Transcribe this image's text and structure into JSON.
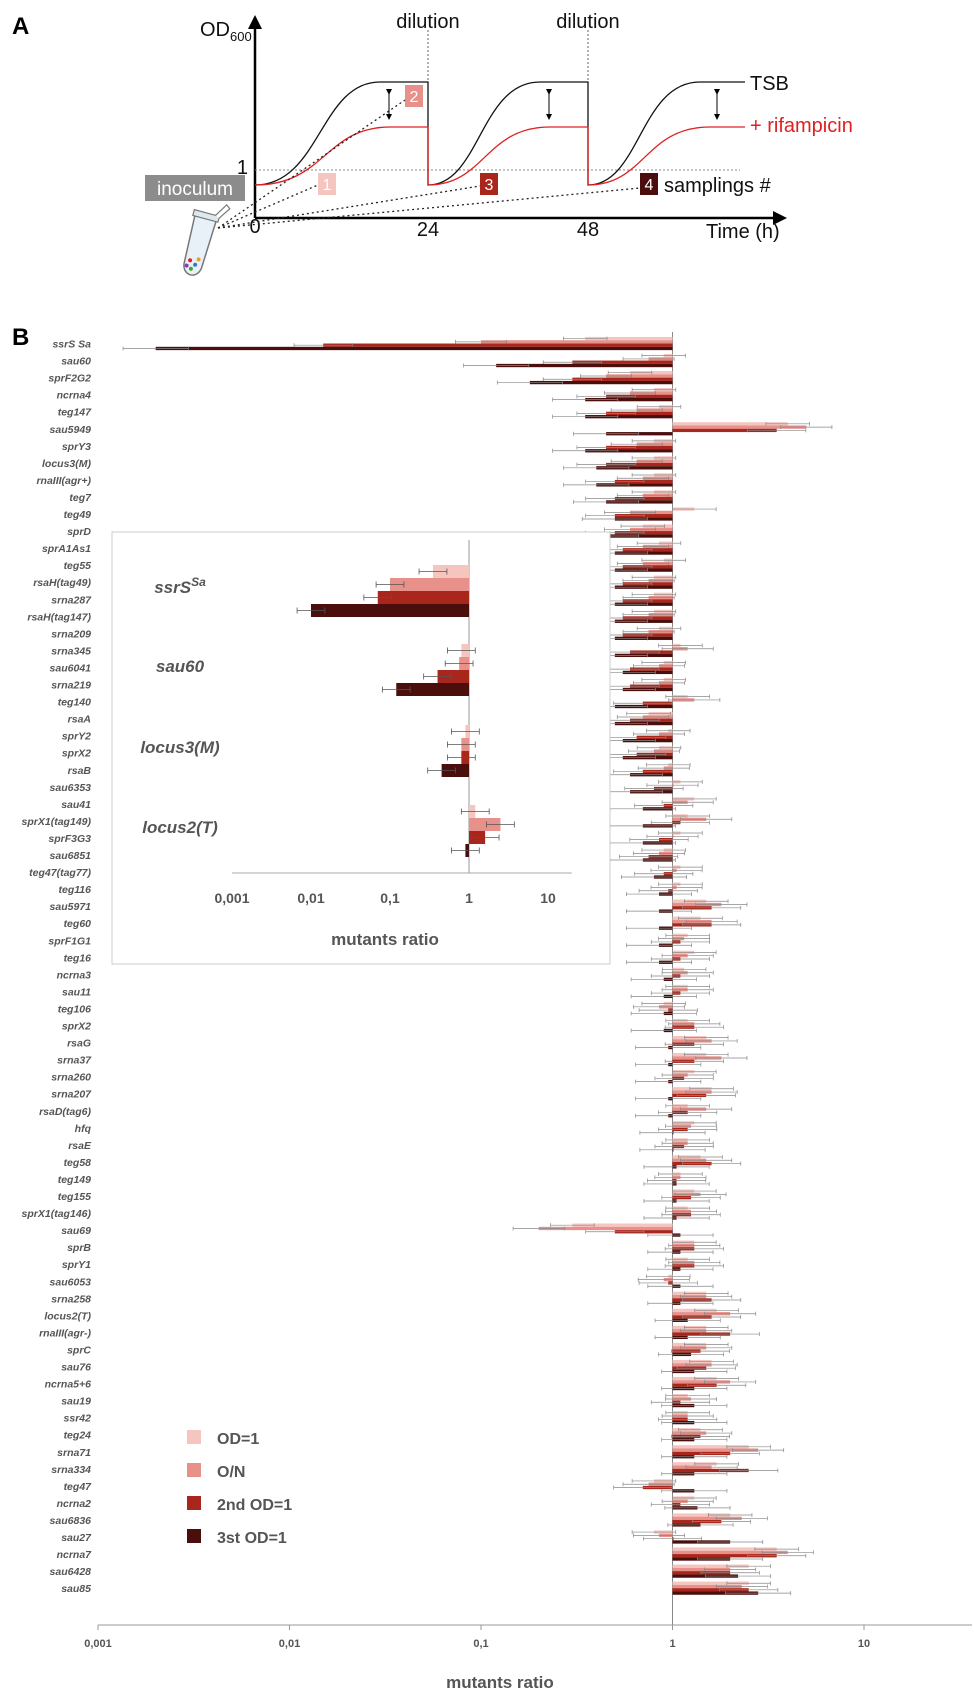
{
  "panel_a": {
    "label": "A",
    "y_axis_label": "OD",
    "y_axis_sub": "600",
    "x_axis_label": "Time (h)",
    "tick_0": "0",
    "tick_24": "24",
    "tick_48": "48",
    "tick_1": "1",
    "dilution_1": "dilution",
    "dilution_2": "dilution",
    "tsb_label": "TSB",
    "rif_label": "+ rifampicin",
    "inoculum_label": "inoculum",
    "samplings_label": "samplings #",
    "sampling_numbers": [
      "1",
      "2",
      "3",
      "4"
    ],
    "colors": {
      "tsb": "#000000",
      "rifampicin": "#e02020",
      "inoculum_bg": "#8c8c8c"
    }
  },
  "panel_b": {
    "label": "B"
  },
  "chart_data": [
    {
      "type": "bar",
      "orientation": "horizontal",
      "x_scale": "log",
      "xlabel": "mutants ratio",
      "xlim": [
        0.001,
        20
      ],
      "xticks": [
        "0,001",
        "0,01",
        "0,1",
        "1",
        "10"
      ],
      "baseline": 1,
      "legend_placement": "bottom-left",
      "series": [
        {
          "name": "OD=1",
          "color": "#f5c6c0"
        },
        {
          "name": "O/N",
          "color": "#e8918a"
        },
        {
          "name": "2nd OD=1",
          "color": "#a8261b"
        },
        {
          "name": "3st OD=1",
          "color": "#4a0f0c"
        }
      ],
      "categories": [
        "ssrS Sa",
        "sau60",
        "sprF2G2",
        "ncrna4",
        "teg147",
        "sau5949",
        "sprY3",
        "locus3(M)",
        "rnaIII(agr+)",
        "teg7",
        "teg49",
        "sprD",
        "sprA1As1",
        "teg55",
        "rsaH(tag49)",
        "srna287",
        "rsaH(tag147)",
        "srna209",
        "srna345",
        "sau6041",
        "srna219",
        "teg140",
        "rsaA",
        "sprY2",
        "sprX2",
        "rsaB",
        "sau6353",
        "sau41",
        "sprX1(tag149)",
        "sprF3G3",
        "sau6851",
        "teg47(tag77)",
        "teg116",
        "sau5971",
        "teg60",
        "sprF1G1",
        "teg16",
        "ncrna3",
        "sau11",
        "teg106",
        "sprX2",
        "rsaG",
        "srna37",
        "srna260",
        "srna207",
        "rsaD(tag6)",
        "hfq",
        "rsaE",
        "teg58",
        "teg149",
        "teg155",
        "sprX1(tag146)",
        "sau69",
        "sprB",
        "sprY1",
        "sau6053",
        "srna258",
        "locus2(T)",
        "rnaIII(agr-)",
        "sprC",
        "sau76",
        "ncrna5+6",
        "sau19",
        "ssr42",
        "teg24",
        "srna71",
        "srna334",
        "teg47",
        "ncrna2",
        "sau6836",
        "sau27",
        "ncrna7",
        "sau6428",
        "sau85"
      ],
      "values": [
        [
          0.35,
          0.1,
          0.015,
          0.002
        ],
        [
          0.9,
          0.75,
          0.3,
          0.12
        ],
        [
          0.6,
          0.45,
          0.3,
          0.18
        ],
        [
          0.8,
          0.6,
          0.45,
          0.35
        ],
        [
          0.85,
          0.65,
          0.45,
          0.35
        ],
        [
          4,
          5,
          3.5,
          0.45
        ],
        [
          0.8,
          0.65,
          0.45,
          0.35
        ],
        [
          0.8,
          0.65,
          0.45,
          0.4
        ],
        [
          0.8,
          0.7,
          0.5,
          0.4
        ],
        [
          0.8,
          0.7,
          0.5,
          0.45
        ],
        [
          1.3,
          0.6,
          0.5,
          0.5
        ],
        [
          0.7,
          0.6,
          0.5,
          0.45
        ],
        [
          0.85,
          0.7,
          0.55,
          0.5
        ],
        [
          0.9,
          0.7,
          0.55,
          0.5
        ],
        [
          0.8,
          0.75,
          0.55,
          0.5
        ],
        [
          0.8,
          0.75,
          0.55,
          0.5
        ],
        [
          0.8,
          0.75,
          0.55,
          0.5
        ],
        [
          0.85,
          0.75,
          0.55,
          0.5
        ],
        [
          1.1,
          1.2,
          0.6,
          0.5
        ],
        [
          0.9,
          0.85,
          0.6,
          0.55
        ],
        [
          0.9,
          0.85,
          0.6,
          0.55
        ],
        [
          1.2,
          1.3,
          0.7,
          0.5
        ],
        [
          0.75,
          0.7,
          0.6,
          0.5
        ],
        [
          0.95,
          0.85,
          0.65,
          0.55
        ],
        [
          0.85,
          0.8,
          0.65,
          0.55
        ],
        [
          0.95,
          0.9,
          0.7,
          0.6
        ],
        [
          1.1,
          1.0,
          0.8,
          0.6
        ],
        [
          1.3,
          1.2,
          0.9,
          0.7
        ],
        [
          1.2,
          1.5,
          1.1,
          0.7
        ],
        [
          1.1,
          1.0,
          0.85,
          0.7
        ],
        [
          0.9,
          0.85,
          0.75,
          0.7
        ],
        [
          1.1,
          1.05,
          0.9,
          0.8
        ],
        [
          1.1,
          1.05,
          0.95,
          0.85
        ],
        [
          1.5,
          1.8,
          1.6,
          0.85
        ],
        [
          1.4,
          1.6,
          1.6,
          0.85
        ],
        [
          1.2,
          1.15,
          1.1,
          0.85
        ],
        [
          1.3,
          1.2,
          1.1,
          0.85
        ],
        [
          1.15,
          1.2,
          1.1,
          0.9
        ],
        [
          1.2,
          1.2,
          1.1,
          0.9
        ],
        [
          0.9,
          0.85,
          0.95,
          0.9
        ],
        [
          1.2,
          1.3,
          1.3,
          0.9
        ],
        [
          1.5,
          1.6,
          1.3,
          0.95
        ],
        [
          1.5,
          1.8,
          1.3,
          0.95
        ],
        [
          1.3,
          1.2,
          1.15,
          0.95
        ],
        [
          1.6,
          1.6,
          1.5,
          0.95
        ],
        [
          1.2,
          1.5,
          1.2,
          0.95
        ],
        [
          1.3,
          1.25,
          1.2,
          1.0
        ],
        [
          1.2,
          1.2,
          1.15,
          1.0
        ],
        [
          1.4,
          1.5,
          1.6,
          1.05
        ],
        [
          1.1,
          1.1,
          1.05,
          1.05
        ],
        [
          1.3,
          1.4,
          1.25,
          1.05
        ],
        [
          1.2,
          1.25,
          1.25,
          1.05
        ],
        [
          0.3,
          0.2,
          0.5,
          1.1
        ],
        [
          1.3,
          1.3,
          1.3,
          1.1
        ],
        [
          1.2,
          1.3,
          1.3,
          1.1
        ],
        [
          0.95,
          0.9,
          0.95,
          1.1
        ],
        [
          1.5,
          1.5,
          1.6,
          1.1
        ],
        [
          1.7,
          2.0,
          1.6,
          1.2
        ],
        [
          1.5,
          1.5,
          2.0,
          1.2
        ],
        [
          1.5,
          1.5,
          1.4,
          1.25
        ],
        [
          1.6,
          1.6,
          1.5,
          1.3
        ],
        [
          1.7,
          2.0,
          1.7,
          1.3
        ],
        [
          1.2,
          1.25,
          1.1,
          1.3
        ],
        [
          1.2,
          1.2,
          1.2,
          1.3
        ],
        [
          1.4,
          1.5,
          1.4,
          1.3
        ],
        [
          2.5,
          2.8,
          2.0,
          1.3
        ],
        [
          1.7,
          1.6,
          2.5,
          1.3
        ],
        [
          0.8,
          0.75,
          0.7,
          1.3
        ],
        [
          1.3,
          1.2,
          1.1,
          1.35
        ],
        [
          2.0,
          2.3,
          1.8,
          1.4
        ],
        [
          0.8,
          0.85,
          1.0,
          2.0
        ],
        [
          3.5,
          4.0,
          3.5,
          2.0
        ],
        [
          2.5,
          2.0,
          2.0,
          2.2
        ],
        [
          2.5,
          2.3,
          2.5,
          2.8
        ]
      ]
    },
    {
      "type": "bar",
      "orientation": "horizontal",
      "x_scale": "log",
      "xlabel": "mutants ratio",
      "xlim": [
        0.001,
        20
      ],
      "xticks": [
        "0,001",
        "0,01",
        "0,1",
        "1",
        "10"
      ],
      "baseline": 1,
      "categories": [
        "ssrSSa",
        "sau60",
        "locus3(M)",
        "locus2(T)"
      ],
      "category_display": [
        {
          "main": "ssrS",
          "sup": "Sa"
        },
        {
          "main": "sau60",
          "sup": ""
        },
        {
          "main": "locus3(M)",
          "sup": ""
        },
        {
          "main": "locus2(T)",
          "sup": ""
        }
      ],
      "values": [
        [
          0.35,
          0.1,
          0.07,
          0.01
        ],
        [
          0.8,
          0.75,
          0.4,
          0.12
        ],
        [
          0.9,
          0.8,
          0.8,
          0.45
        ],
        [
          1.2,
          2.5,
          1.6,
          0.9
        ]
      ]
    }
  ],
  "legend": {
    "od1": "OD=1",
    "on": "O/N",
    "od1_2nd": "2nd OD=1",
    "od1_3rd": "3st OD=1"
  }
}
